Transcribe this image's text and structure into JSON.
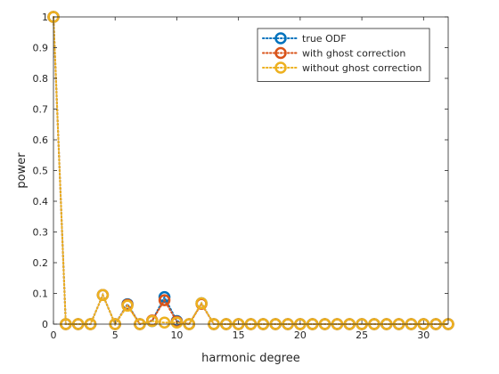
{
  "chart_data": {
    "type": "line",
    "title": "",
    "xlabel": "harmonic degree",
    "ylabel": "power",
    "xlim": [
      0,
      32
    ],
    "ylim": [
      0,
      1
    ],
    "xticks": [
      0,
      5,
      10,
      15,
      20,
      25,
      30
    ],
    "yticks": [
      0,
      0.1,
      0.2,
      0.3,
      0.4,
      0.5,
      0.6,
      0.7,
      0.8,
      0.9,
      1
    ],
    "grid": false,
    "legend_position": "top-right",
    "x": [
      0,
      1,
      2,
      3,
      4,
      5,
      6,
      7,
      8,
      9,
      10,
      11,
      12,
      13,
      14,
      15,
      16,
      17,
      18,
      19,
      20,
      21,
      22,
      23,
      24,
      25,
      26,
      27,
      28,
      29,
      30,
      31,
      32
    ],
    "series": [
      {
        "name": "true ODF",
        "color": "#0072BD",
        "values": [
          1,
          0,
          0,
          0,
          0.095,
          0,
          0.065,
          0,
          0.01,
          0.088,
          0.01,
          0,
          0.068,
          0,
          0,
          0,
          0,
          0,
          0,
          0,
          0,
          0,
          0,
          0,
          0,
          0,
          0,
          0,
          0,
          0,
          0,
          0,
          0
        ]
      },
      {
        "name": "with ghost correction",
        "color": "#D95319",
        "values": [
          1,
          0,
          0,
          0,
          0.095,
          0,
          0.063,
          0,
          0.012,
          0.078,
          0.008,
          0,
          0.066,
          0,
          0,
          0,
          0,
          0,
          0,
          0,
          0,
          0,
          0,
          0,
          0,
          0,
          0,
          0,
          0,
          0,
          0,
          0,
          0
        ]
      },
      {
        "name": "without ghost correction",
        "color": "#EDB120",
        "values": [
          1,
          0,
          0,
          0,
          0.095,
          0,
          0.06,
          0,
          0.01,
          0.005,
          0.005,
          0,
          0.068,
          0,
          0,
          0,
          0,
          0,
          0,
          0,
          0,
          0,
          0,
          0,
          0,
          0,
          0,
          0,
          0,
          0,
          0,
          0,
          0
        ]
      }
    ]
  }
}
